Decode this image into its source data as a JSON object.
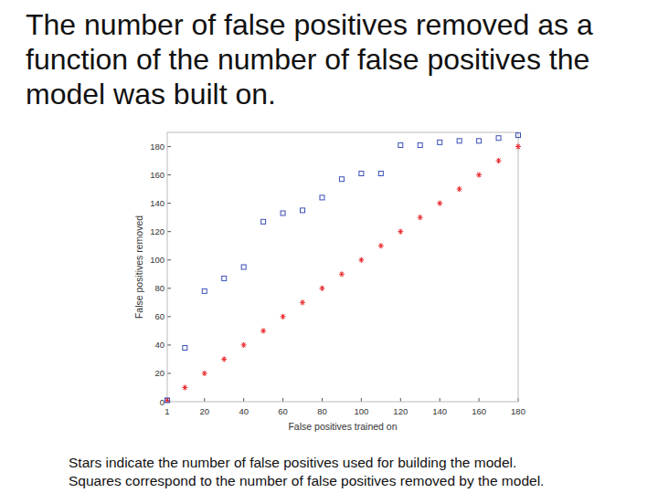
{
  "chart_data": {
    "type": "scatter",
    "title": "The number of false positives removed as a function of the number of false positives the model was built on.",
    "x_label": "False positives trained on",
    "y_label": "False positives removed",
    "annotations": [
      "Stars indicate the number of false positives used for building the model.",
      "Squares correspond to the number of false positives removed by the model."
    ],
    "x": [
      1,
      10,
      20,
      30,
      40,
      50,
      60,
      70,
      80,
      90,
      100,
      110,
      120,
      130,
      140,
      150,
      160,
      170,
      180
    ],
    "series": [
      {
        "color": "#e8262a",
        "marker": "star",
        "values": [
          1,
          10,
          20,
          30,
          40,
          50,
          60,
          70,
          80,
          90,
          100,
          110,
          120,
          130,
          140,
          150,
          160,
          170,
          180
        ]
      },
      {
        "color": "#3a4fb5",
        "marker": "square",
        "values": [
          1,
          38,
          78,
          87,
          95,
          127,
          133,
          135,
          144,
          157,
          161,
          161,
          181,
          181,
          183,
          184,
          184,
          186,
          188
        ]
      }
    ],
    "xlim": [
      1,
      180
    ],
    "xticks": [
      1,
      20,
      40,
      60,
      80,
      100,
      120,
      140,
      160,
      180
    ],
    "ylim": [
      0,
      190
    ],
    "yticks": [
      0,
      20,
      40,
      60,
      80,
      100,
      120,
      140,
      160,
      180
    ],
    "grid": false
  }
}
